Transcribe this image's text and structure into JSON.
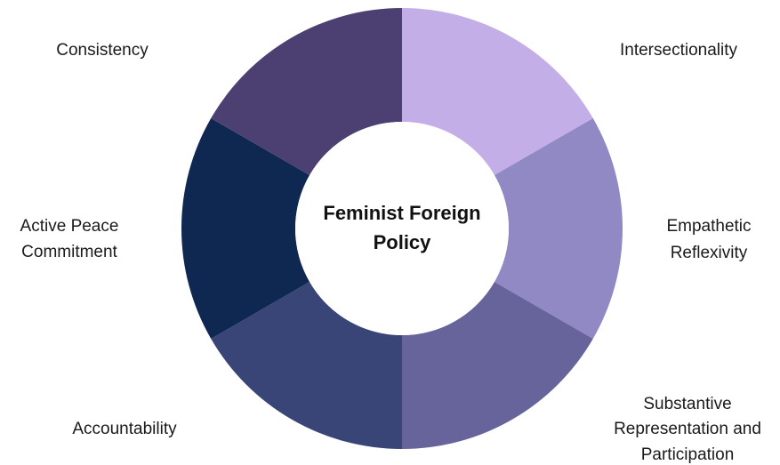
{
  "title": [
    "Feminist Foreign",
    "Policy"
  ],
  "nodes": [
    {
      "label": [
        "Intersectionality"
      ],
      "color": "#c3aee8"
    },
    {
      "label": [
        "Empathetic",
        "Reflexivity"
      ],
      "color": "#9189c4"
    },
    {
      "label": [
        "Substantive",
        "Representation and",
        "Participation"
      ],
      "color": "#67649c"
    },
    {
      "label": [
        "Accountability"
      ],
      "color": "#3a4577"
    },
    {
      "label": [
        "Active Peace",
        "Commitment"
      ],
      "color": "#0f2851"
    },
    {
      "label": [
        "Consistency"
      ],
      "color": "#4c3f71"
    }
  ]
}
